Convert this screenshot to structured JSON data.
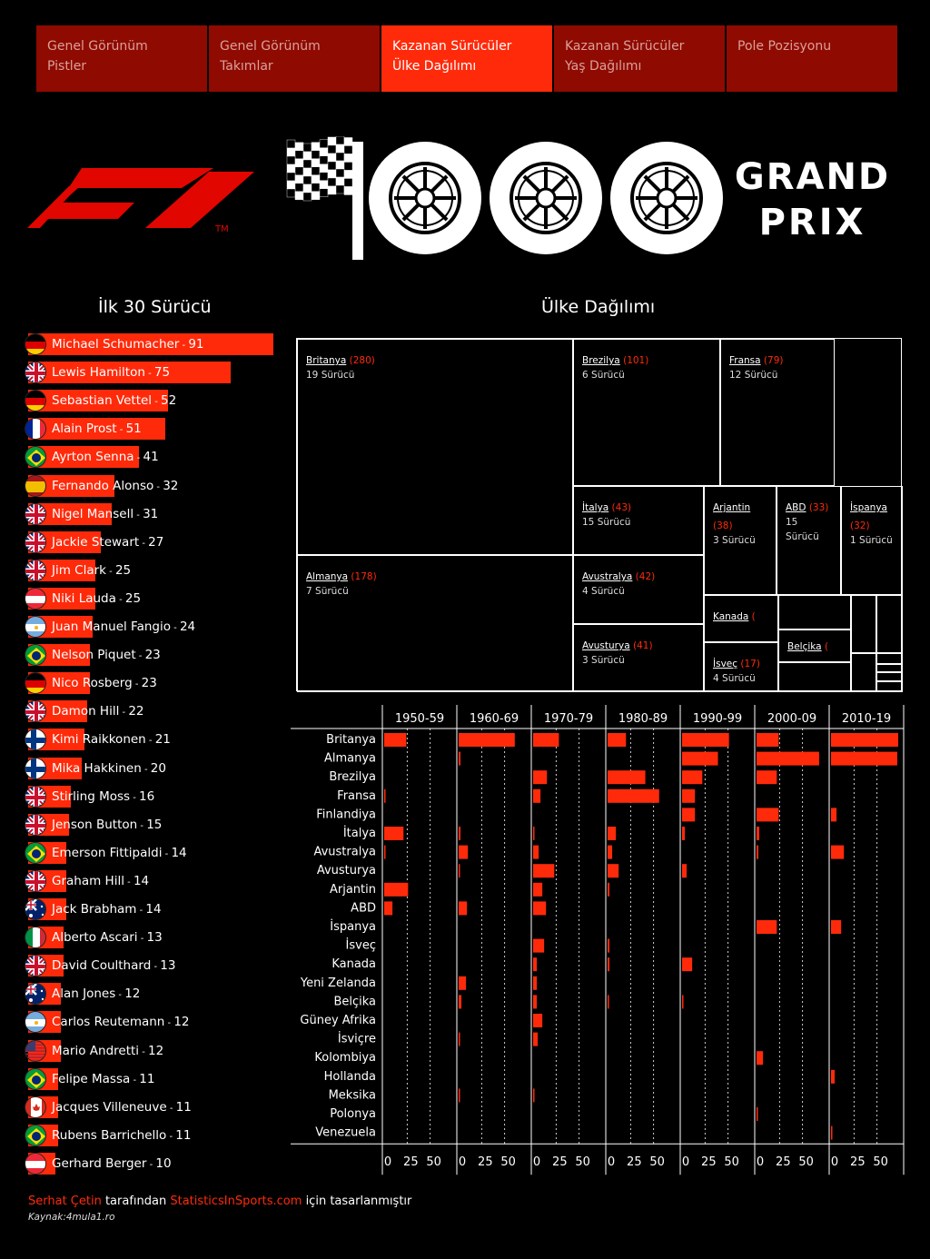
{
  "nav": {
    "tabs": [
      {
        "line1": "Genel Görünüm",
        "line2": "Pistler",
        "active": false
      },
      {
        "line1": "Genel Görünüm",
        "line2": "Takımlar",
        "active": false
      },
      {
        "line1": "Kazanan Sürücüler",
        "line2": "Ülke Dağılımı",
        "active": true
      },
      {
        "line1": "Kazanan Sürücüler",
        "line2": "Yaş Dağılımı",
        "active": false
      },
      {
        "line1": "Pole Pozisyonu",
        "line2": "",
        "active": false
      }
    ]
  },
  "header": {
    "logo_icon": "f1-logo",
    "tm": "TM",
    "gp_line1": "GRAND",
    "gp_line2": "PRIX",
    "gp_icons": [
      "checkered-flag-icon",
      "tyre-icon",
      "tyre-icon",
      "tyre-icon"
    ]
  },
  "sections": {
    "drivers_title": "İlk 30 Sürücü",
    "country_title": "Ülke Dağılımı"
  },
  "colors": {
    "accent": "#ff2a0a",
    "tab_inactive": "#8f0a00",
    "background": "#000000"
  },
  "chart_data": [
    {
      "type": "bar",
      "orientation": "horizontal",
      "title": "İlk 30 Sürücü",
      "categories": [
        "Michael Schumacher",
        "Lewis Hamilton",
        "Sebastian Vettel",
        "Alain Prost",
        "Ayrton Senna",
        "Fernando Alonso",
        "Nigel Mansell",
        "Jackie Stewart",
        "Jim Clark",
        "Niki Lauda",
        "Juan Manuel Fangio",
        "Nelson Piquet",
        "Nico Rosberg",
        "Damon Hill",
        "Kimi Raikkonen",
        "Mika Hakkinen",
        "Stirling Moss",
        "Jenson Button",
        "Emerson Fittipaldi",
        "Graham Hill",
        "Jack Brabham",
        "Alberto Ascari",
        "David Coulthard",
        "Alan Jones",
        "Carlos Reutemann",
        "Mario Andretti",
        "Felipe Massa",
        "Jacques Villeneuve",
        "Rubens Barrichello",
        "Gerhard Berger"
      ],
      "values": [
        91,
        75,
        52,
        51,
        41,
        32,
        31,
        27,
        25,
        25,
        24,
        23,
        23,
        22,
        21,
        20,
        16,
        15,
        14,
        14,
        14,
        13,
        13,
        12,
        12,
        12,
        11,
        11,
        11,
        10
      ],
      "flags": [
        "de",
        "gb",
        "de",
        "fr",
        "br",
        "es",
        "gb",
        "gb",
        "gb",
        "at",
        "ar",
        "br",
        "de",
        "gb",
        "fi",
        "fi",
        "gb",
        "gb",
        "br",
        "gb",
        "au",
        "it",
        "gb",
        "au",
        "ar",
        "us",
        "br",
        "ca",
        "br",
        "at"
      ],
      "separator": " - "
    },
    {
      "type": "treemap",
      "title": "Ülke Dağılımı",
      "driver_suffix": "Sürücü",
      "cells": [
        {
          "name": "Britanya",
          "wins": "280",
          "drivers": "19"
        },
        {
          "name": "Almanya",
          "wins": "178",
          "drivers": "7"
        },
        {
          "name": "Brezilya",
          "wins": "101",
          "drivers": "6"
        },
        {
          "name": "Fransa",
          "wins": "79",
          "drivers": "12"
        },
        {
          "name": "İtalya",
          "wins": "43",
          "drivers": "15"
        },
        {
          "name": "Avustralya",
          "wins": "42",
          "drivers": "4"
        },
        {
          "name": "Avusturya",
          "wins": "41",
          "drivers": "3"
        },
        {
          "name": "Arjantin",
          "wins": "38",
          "drivers": "3"
        },
        {
          "name": "ABD",
          "wins": "33",
          "drivers": "15"
        },
        {
          "name": "İspanya",
          "wins": "32",
          "drivers": "1"
        },
        {
          "name": "Kanada",
          "wins": "",
          "drivers": ""
        },
        {
          "name": "İsveç",
          "wins": "17",
          "drivers": "4"
        },
        {
          "name": "Belçika",
          "wins": "",
          "drivers": ""
        }
      ]
    },
    {
      "type": "bar",
      "orientation": "horizontal",
      "layout": "small-multiples",
      "panels": [
        "1950-59",
        "1960-69",
        "1970-79",
        "1980-89",
        "1990-99",
        "2000-09",
        "2010-19"
      ],
      "categories": [
        "Britanya",
        "Almanya",
        "Brezilya",
        "Fransa",
        "Finlandiya",
        "İtalya",
        "Avustralya",
        "Avusturya",
        "Arjantin",
        "ABD",
        "İspanya",
        "İsveç",
        "Kanada",
        "Yeni Zelanda",
        "Belçika",
        "Güney Afrika",
        "İsviçre",
        "Kolombiya",
        "Hollanda",
        "Meksika",
        "Polonya",
        "Venezuela"
      ],
      "xlim": [
        0,
        75
      ],
      "xticks": [
        0,
        25,
        50
      ],
      "series": [
        {
          "name": "1950-59",
          "values": [
            24,
            0,
            0,
            1,
            0,
            21,
            1,
            0,
            26,
            9,
            0,
            0,
            0,
            0,
            0,
            0,
            0,
            0,
            0,
            0,
            0,
            0
          ]
        },
        {
          "name": "1960-69",
          "values": [
            61,
            2,
            0,
            0,
            0,
            2,
            10,
            1,
            0,
            9,
            0,
            0,
            0,
            8,
            3,
            0,
            1,
            0,
            0,
            1,
            0,
            0
          ]
        },
        {
          "name": "1970-79",
          "values": [
            28,
            0,
            15,
            8,
            0,
            1,
            6,
            23,
            10,
            14,
            0,
            12,
            4,
            4,
            4,
            10,
            5,
            0,
            0,
            1,
            0,
            0
          ]
        },
        {
          "name": "1980-89",
          "values": [
            20,
            0,
            41,
            56,
            0,
            9,
            5,
            12,
            2,
            0,
            0,
            2,
            2,
            0,
            1,
            0,
            0,
            0,
            0,
            0,
            0,
            0
          ]
        },
        {
          "name": "1990-99",
          "values": [
            51,
            39,
            22,
            14,
            14,
            3,
            0,
            5,
            0,
            0,
            0,
            0,
            11,
            0,
            1,
            0,
            0,
            0,
            0,
            0,
            0,
            0
          ]
        },
        {
          "name": "2000-09",
          "values": [
            24,
            68,
            22,
            0,
            24,
            3,
            2,
            0,
            0,
            0,
            22,
            0,
            0,
            0,
            0,
            0,
            0,
            7,
            0,
            0,
            1,
            0
          ]
        },
        {
          "name": "2010-19",
          "values": [
            73,
            72,
            0,
            0,
            6,
            0,
            14,
            0,
            0,
            0,
            11,
            0,
            0,
            0,
            0,
            0,
            0,
            0,
            4,
            0,
            0,
            1
          ]
        }
      ]
    }
  ],
  "footer": {
    "author": "Serhat Çetin",
    "by": " tarafından ",
    "site": "StatisticsInSports.com",
    "for": " için tasarlanmıştır",
    "source": "Kaynak:4mula1.ro"
  }
}
